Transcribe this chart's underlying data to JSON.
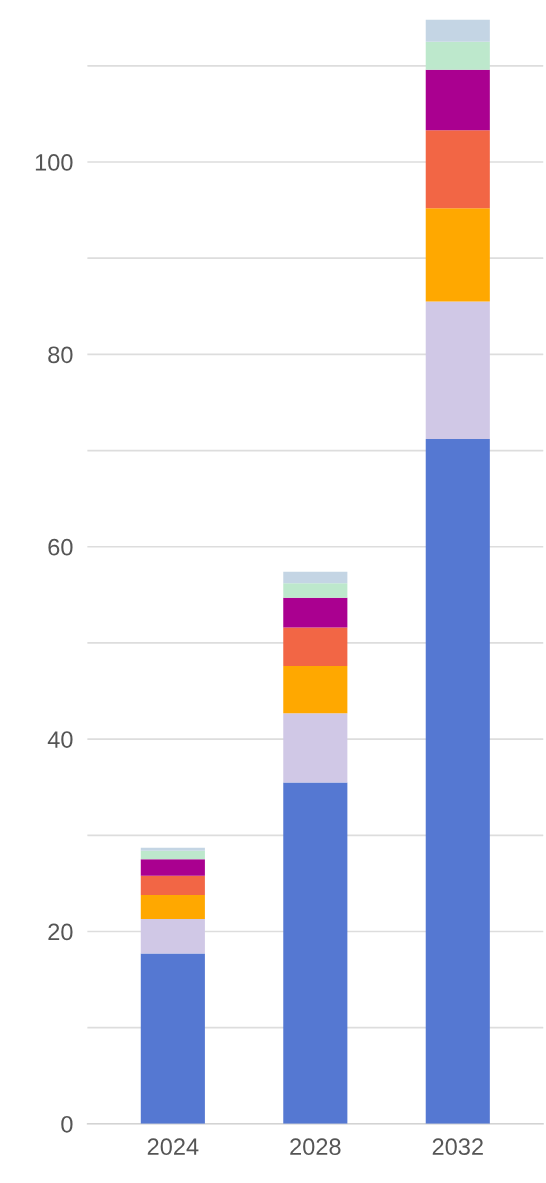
{
  "chart_data": {
    "type": "bar",
    "stacked": true,
    "categories": [
      "2024",
      "2028",
      "2032"
    ],
    "series": [
      {
        "color": "#5578d2",
        "values": [
          17.7,
          35.5,
          71.2
        ]
      },
      {
        "color": "#d0c8e6",
        "values": [
          3.6,
          7.2,
          14.3
        ]
      },
      {
        "color": "#ffa800",
        "values": [
          2.5,
          4.9,
          9.7
        ]
      },
      {
        "color": "#f26645",
        "values": [
          2.0,
          4.0,
          8.1
        ]
      },
      {
        "color": "#aa0090",
        "values": [
          1.7,
          3.1,
          6.3
        ]
      },
      {
        "color": "#bde8cc",
        "values": [
          0.9,
          1.5,
          2.9
        ]
      },
      {
        "color": "#c4d5e4",
        "values": [
          0.3,
          1.2,
          2.3
        ]
      }
    ],
    "ylim": [
      0,
      115
    ],
    "yticks": [
      0,
      {
        "value": 10,
        "label": null
      },
      20,
      {
        "value": 30,
        "label": null
      },
      40,
      {
        "value": 50,
        "label": null
      },
      60,
      {
        "value": 70,
        "label": null
      },
      80,
      {
        "value": 90,
        "label": null
      },
      100,
      {
        "value": 110,
        "label": null
      }
    ],
    "grid": "y"
  }
}
